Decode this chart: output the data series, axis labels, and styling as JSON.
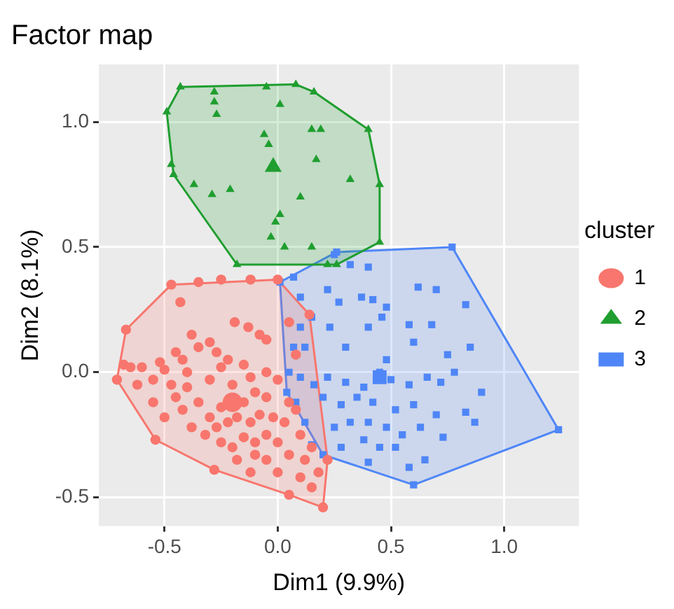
{
  "chart_data": {
    "type": "scatter",
    "title": "Factor map",
    "xlabel": "Dim1 (9.9%)",
    "ylabel": "Dim2 (8.1%)",
    "legend_title": "cluster",
    "legend": "right",
    "grid": true,
    "xlim": [
      -0.79,
      1.33
    ],
    "ylim": [
      -0.615,
      1.23
    ],
    "xticks": [
      -0.5,
      {
        "value": 0,
        "label": "0.0"
      },
      0.5,
      {
        "value": 1,
        "label": "1.0"
      }
    ],
    "yticks": [
      -0.5,
      {
        "value": 0,
        "label": "0.0"
      },
      0.5,
      {
        "value": 1,
        "label": "1.0"
      }
    ],
    "series": [
      {
        "type": "area",
        "color": "#f8766d",
        "x": [
          -0.67,
          -0.47,
          0.0,
          0.14,
          0.22,
          0.2,
          0.05,
          -0.28,
          -0.54,
          -0.71,
          -0.67
        ],
        "values": [
          0.17,
          0.35,
          0.37,
          0.23,
          -0.35,
          -0.54,
          -0.49,
          -0.39,
          -0.27,
          -0.03,
          0.17
        ]
      },
      {
        "type": "area",
        "color": "#1f9e2f",
        "x": [
          -0.43,
          0.08,
          0.16,
          0.4,
          0.45,
          0.45,
          0.26,
          -0.18,
          -0.46,
          -0.49,
          -0.43
        ],
        "values": [
          1.14,
          1.15,
          1.12,
          0.97,
          0.75,
          0.52,
          0.43,
          0.43,
          0.79,
          1.04,
          1.14
        ]
      },
      {
        "type": "area",
        "color": "#4f86f7",
        "x": [
          0.01,
          0.26,
          0.77,
          1.24,
          0.6,
          0.2,
          0.04,
          0.01
        ],
        "values": [
          0.36,
          0.48,
          0.5,
          -0.23,
          -0.45,
          -0.33,
          -0.08,
          0.36
        ]
      },
      {
        "name": "1",
        "marker": "circle",
        "color": "#f8766d",
        "x": [
          -0.67,
          -0.47,
          0.0,
          0.14,
          0.22,
          0.2,
          0.05,
          -0.28,
          -0.54,
          -0.71,
          -0.43,
          -0.35,
          -0.25,
          -0.12,
          -0.19,
          -0.13,
          -0.08,
          -0.05,
          0.05,
          0.08,
          -0.38,
          -0.45,
          -0.52,
          -0.6,
          -0.65,
          -0.68,
          -0.62,
          -0.55,
          -0.5,
          -0.42,
          -0.35,
          -0.3,
          -0.27,
          -0.25,
          -0.15,
          -0.12,
          -0.05,
          0.0,
          -0.2,
          -0.3,
          -0.4,
          -0.45,
          -0.55,
          -0.5,
          -0.42,
          -0.35,
          -0.3,
          -0.25,
          -0.15,
          -0.1,
          -0.05,
          0.05,
          -0.38,
          -0.32,
          -0.27,
          -0.22,
          -0.18,
          -0.12,
          -0.08,
          -0.02,
          0.03,
          0.08,
          -0.25,
          -0.2,
          -0.15,
          -0.1,
          -0.05,
          0.0,
          0.1,
          0.15,
          -0.18,
          -0.1,
          -0.05,
          0.05,
          0.12,
          0.18,
          0.1,
          0.0,
          -0.12,
          0.15,
          -0.4,
          -0.47,
          -0.22
        ],
        "values": [
          0.17,
          0.35,
          0.37,
          0.23,
          -0.35,
          -0.54,
          -0.49,
          -0.39,
          -0.27,
          -0.03,
          0.28,
          0.36,
          0.37,
          0.37,
          0.2,
          0.18,
          0.15,
          0.13,
          0.2,
          0.07,
          0.15,
          0.08,
          0.04,
          0.02,
          0.02,
          0.03,
          -0.05,
          -0.03,
          0.01,
          0.05,
          0.1,
          0.12,
          0.08,
          0.02,
          0.03,
          -0.02,
          0.0,
          -0.03,
          -0.05,
          -0.03,
          -0.06,
          -0.1,
          -0.12,
          -0.18,
          -0.15,
          -0.12,
          -0.18,
          -0.14,
          -0.12,
          -0.08,
          -0.1,
          -0.12,
          -0.22,
          -0.25,
          -0.22,
          -0.2,
          -0.18,
          -0.2,
          -0.17,
          -0.18,
          -0.2,
          -0.15,
          -0.28,
          -0.3,
          -0.26,
          -0.28,
          -0.25,
          -0.28,
          -0.25,
          -0.3,
          -0.35,
          -0.33,
          -0.35,
          -0.33,
          -0.35,
          -0.4,
          -0.42,
          -0.4,
          -0.4,
          -0.46,
          0.0,
          -0.05,
          0.05
        ]
      },
      {
        "name": "2",
        "marker": "triangle",
        "color": "#1f9e2f",
        "x": [
          -0.43,
          -0.28,
          -0.28,
          -0.27,
          -0.05,
          0.08,
          0.16,
          0.01,
          -0.06,
          -0.04,
          0.15,
          0.19,
          0.17,
          0.4,
          -0.49,
          -0.47,
          -0.46,
          -0.37,
          -0.29,
          -0.21,
          0.1,
          0.32,
          0.45,
          0.01,
          -0.01,
          -0.03,
          0.03,
          0.15,
          0.45,
          -0.18,
          0.26,
          0.22
        ],
        "values": [
          1.14,
          1.12,
          1.08,
          1.03,
          1.14,
          1.15,
          1.12,
          1.07,
          0.95,
          0.91,
          0.97,
          0.97,
          0.85,
          0.97,
          1.04,
          0.83,
          0.79,
          0.75,
          0.71,
          0.73,
          0.7,
          0.77,
          0.75,
          0.63,
          0.6,
          0.54,
          0.5,
          0.5,
          0.52,
          0.43,
          0.43,
          0.43
        ]
      },
      {
        "name": "3",
        "marker": "square",
        "color": "#4f86f7",
        "x": [
          0.01,
          0.26,
          0.77,
          1.24,
          0.6,
          0.2,
          0.04,
          0.07,
          0.25,
          0.32,
          0.4,
          0.1,
          0.22,
          0.27,
          0.37,
          0.42,
          0.48,
          0.62,
          0.7,
          0.83,
          0.15,
          0.23,
          0.4,
          0.46,
          0.58,
          0.68,
          0.12,
          0.3,
          0.48,
          0.6,
          0.75,
          0.85,
          0.05,
          0.1,
          0.16,
          0.22,
          0.3,
          0.38,
          0.45,
          0.5,
          0.58,
          0.66,
          0.72,
          0.78,
          0.9,
          0.08,
          0.2,
          0.28,
          0.35,
          0.42,
          0.52,
          0.6,
          0.7,
          0.83,
          0.12,
          0.25,
          0.32,
          0.4,
          0.48,
          0.55,
          0.63,
          0.73,
          0.87,
          0.15,
          0.28,
          0.38,
          0.45,
          0.52,
          0.58,
          0.65,
          0.4,
          0.07,
          0.1
        ],
        "values": [
          0.36,
          0.48,
          0.5,
          -0.23,
          -0.45,
          -0.33,
          -0.08,
          0.38,
          0.47,
          0.43,
          0.42,
          0.3,
          0.33,
          0.28,
          0.3,
          0.29,
          0.26,
          0.34,
          0.33,
          0.27,
          0.22,
          0.18,
          0.18,
          0.22,
          0.19,
          0.19,
          0.1,
          0.1,
          0.05,
          0.12,
          0.07,
          0.1,
          0.0,
          -0.02,
          -0.05,
          -0.02,
          -0.04,
          -0.06,
          0.0,
          -0.03,
          -0.05,
          -0.02,
          -0.04,
          0.0,
          -0.08,
          -0.12,
          -0.1,
          -0.13,
          -0.1,
          -0.12,
          -0.15,
          -0.13,
          -0.17,
          -0.16,
          -0.2,
          -0.22,
          -0.2,
          -0.2,
          -0.22,
          -0.25,
          -0.22,
          -0.26,
          -0.2,
          -0.29,
          -0.3,
          -0.27,
          -0.3,
          -0.3,
          -0.38,
          -0.35,
          -0.36,
          0.1,
          0.18
        ]
      },
      {
        "marker": "circle",
        "color": "#f8766d",
        "x": [
          -0.2
        ],
        "values": [
          -0.12
        ]
      },
      {
        "marker": "triangle",
        "color": "#1f9e2f",
        "x": [
          -0.02
        ],
        "values": [
          0.82
        ]
      },
      {
        "marker": "square",
        "color": "#4f86f7",
        "x": [
          0.45
        ],
        "values": [
          -0.02
        ]
      }
    ]
  }
}
